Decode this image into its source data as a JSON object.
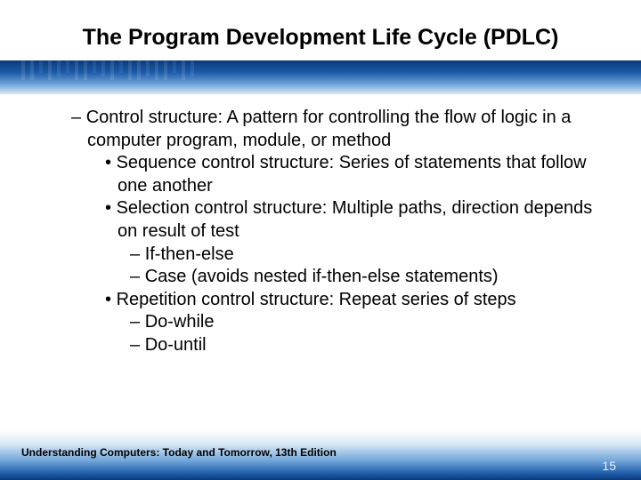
{
  "title": "The Program Development Life Cycle (PDLC)",
  "content": {
    "l1_text": "Control structure: A pattern for controlling the flow of logic in a computer program, module, or method",
    "l2_1": "Sequence control structure: Series of statements that follow one another",
    "l2_2": "Selection control structure: Multiple paths, direction depends on result of test",
    "l3_1": "If-then-else",
    "l3_2": "Case (avoids nested if-then-else statements)",
    "l2_3": "Repetition control structure: Repeat series of steps",
    "l3_3": "Do-while",
    "l3_4": "Do-until"
  },
  "footer": "Understanding Computers: Today and Tomorrow, 13th Edition",
  "page_number": "15",
  "styling": {
    "slide_width": 720,
    "slide_height": 540,
    "background_color": "#ffffff",
    "title_fontsize": 25,
    "title_color": "#000000",
    "title_weight": "bold",
    "body_fontsize": 20,
    "body_color": "#000000",
    "line_height": 1.28,
    "header_gradient": [
      "#0a3a7a",
      "#1c5aa8",
      "#6fa3d8",
      "#d8e8f5"
    ],
    "footer_gradient": [
      "#ffffff",
      "#d8e8f5",
      "#6fa3d8",
      "#1c5aa8",
      "#0a3a7a"
    ],
    "footer_fontsize": 12,
    "footer_color": "#000000",
    "page_number_fontsize": 14,
    "page_number_color": "#e8f0fa",
    "indent_l1": 18,
    "indent_l2": 52,
    "indent_l3": 82,
    "bullet_l1": "–",
    "bullet_l2": "•",
    "bullet_l3": "–"
  }
}
